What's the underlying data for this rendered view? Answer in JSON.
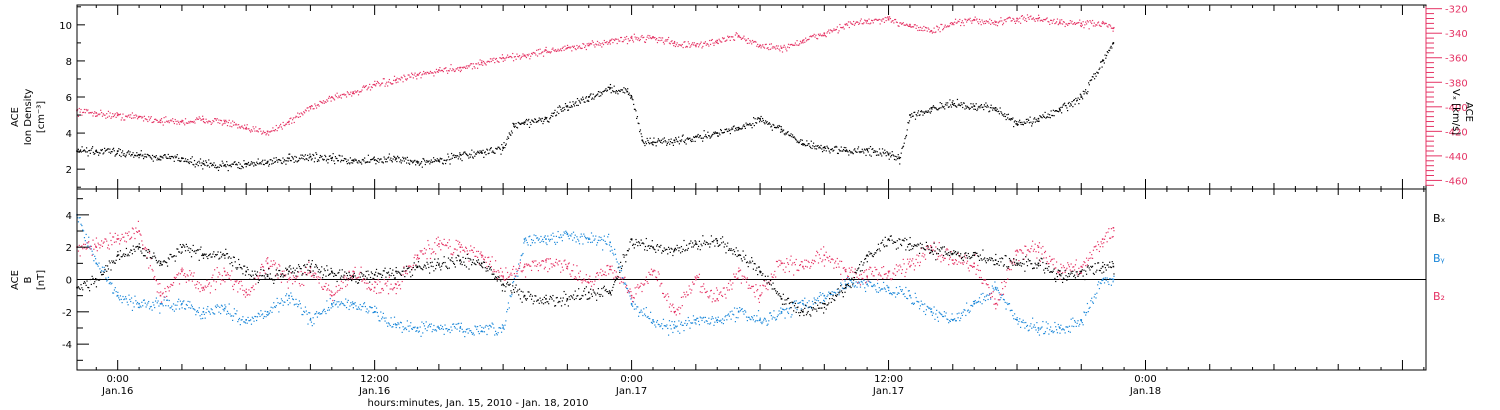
{
  "x_axis": {
    "label": "hours:minutes, Jan. 15, 2010 - Jan. 18, 2010",
    "range_hours": [
      -1.9,
      61.1
    ],
    "ticks": [
      {
        "hour": 0,
        "time": "0:00",
        "date": "Jan.16"
      },
      {
        "hour": 12,
        "time": "12:00",
        "date": "Jan.16"
      },
      {
        "hour": 24,
        "time": "0:00",
        "date": "Jan.17"
      },
      {
        "hour": 36,
        "time": "12:00",
        "date": "Jan.17"
      },
      {
        "hour": 48,
        "time": "0:00",
        "date": "Jan.18"
      }
    ],
    "minor_step_hours": 1,
    "major_step_hours": 3
  },
  "panels": {
    "top": {
      "left_ylabel_lines": [
        "ACE",
        "Ion Density",
        "[cm⁻³]"
      ],
      "right_ylabel_lines": [
        "ACE",
        "Vₓ [km/s]"
      ],
      "left_ticks": [
        "2",
        "4",
        "6",
        "8",
        "10"
      ],
      "right_ticks": [
        "-460",
        "-440",
        "-420",
        "-400",
        "-380",
        "-360",
        "-340",
        "-320"
      ]
    },
    "bottom": {
      "ylabel_lines": [
        "ACE",
        "B",
        "[nT]"
      ],
      "ticks": [
        "-4",
        "-2",
        "0",
        "2",
        "4"
      ],
      "legend": [
        {
          "label": "Bₓ",
          "color": "#000000"
        },
        {
          "label": "Bᵧ",
          "color": "#1a87d9"
        },
        {
          "label": "B₂",
          "color": "#e53465"
        }
      ]
    }
  },
  "colors": {
    "density": "#000000",
    "velocity": "#e53465",
    "bx": "#000000",
    "by": "#1a87d9",
    "bz": "#e53465",
    "axes": "#000000"
  },
  "chart_data": [
    {
      "type": "scatter",
      "name": "ACE Ion Density and Vx",
      "x_unit": "hours since 2010-01-16 00:00 UT",
      "xlim": [
        -1.9,
        61.1
      ],
      "ylim_left": [
        0.9,
        11.1
      ],
      "ylim_right": [
        -467,
        -317
      ],
      "series": [
        {
          "name": "Ion Density",
          "axis": "left",
          "color": "#000000",
          "points": [
            [
              -1.9,
              3.0
            ],
            [
              -1.0,
              3.0
            ],
            [
              0,
              3.0
            ],
            [
              1.0,
              2.8
            ],
            [
              2.0,
              2.7
            ],
            [
              3.0,
              2.6
            ],
            [
              4.0,
              2.3
            ],
            [
              5.0,
              2.2
            ],
            [
              6.0,
              2.3
            ],
            [
              7.0,
              2.4
            ],
            [
              8.0,
              2.6
            ],
            [
              9.0,
              2.7
            ],
            [
              10.0,
              2.6
            ],
            [
              11.0,
              2.5
            ],
            [
              12.0,
              2.5
            ],
            [
              13.0,
              2.6
            ],
            [
              14.0,
              2.4
            ],
            [
              15.0,
              2.5
            ],
            [
              16.0,
              2.8
            ],
            [
              17.0,
              2.9
            ],
            [
              18.0,
              3.2
            ],
            [
              18.5,
              4.5
            ],
            [
              19.0,
              4.6
            ],
            [
              20.0,
              4.8
            ],
            [
              21.0,
              5.5
            ],
            [
              22.0,
              6.0
            ],
            [
              23.0,
              6.5
            ],
            [
              23.8,
              6.3
            ],
            [
              24.0,
              6.0
            ],
            [
              24.5,
              3.6
            ],
            [
              25.0,
              3.5
            ],
            [
              26.0,
              3.6
            ],
            [
              27.0,
              3.8
            ],
            [
              28.0,
              4.0
            ],
            [
              29.0,
              4.3
            ],
            [
              30.0,
              4.8
            ],
            [
              31.0,
              4.2
            ],
            [
              32.0,
              3.4
            ],
            [
              33.0,
              3.2
            ],
            [
              34.0,
              3.0
            ],
            [
              35.0,
              3.1
            ],
            [
              36.0,
              2.8
            ],
            [
              36.5,
              2.6
            ],
            [
              37.0,
              5.0
            ],
            [
              38.0,
              5.4
            ],
            [
              39.0,
              5.6
            ],
            [
              40.0,
              5.5
            ],
            [
              41.0,
              5.4
            ],
            [
              42.0,
              4.5
            ],
            [
              43.0,
              4.8
            ],
            [
              44.0,
              5.3
            ],
            [
              45.0,
              6.0
            ],
            [
              46.0,
              8.0
            ],
            [
              46.5,
              9.0
            ]
          ]
        },
        {
          "name": "Vx",
          "axis": "right",
          "color": "#e53465",
          "points": [
            [
              -1.9,
              -403
            ],
            [
              -1.0,
              -405
            ],
            [
              0,
              -407
            ],
            [
              1.0,
              -408
            ],
            [
              2.0,
              -411
            ],
            [
              3.0,
              -412
            ],
            [
              4.0,
              -410
            ],
            [
              5.0,
              -412
            ],
            [
              6.0,
              -418
            ],
            [
              7.0,
              -420
            ],
            [
              8.0,
              -412
            ],
            [
              9.0,
              -400
            ],
            [
              10.0,
              -392
            ],
            [
              11.0,
              -388
            ],
            [
              12.0,
              -382
            ],
            [
              13.0,
              -378
            ],
            [
              14.0,
              -374
            ],
            [
              15.0,
              -370
            ],
            [
              16.0,
              -368
            ],
            [
              17.0,
              -364
            ],
            [
              18.0,
              -360
            ],
            [
              19.0,
              -358
            ],
            [
              20.0,
              -354
            ],
            [
              21.0,
              -352
            ],
            [
              22.0,
              -350
            ],
            [
              23.0,
              -346
            ],
            [
              24.0,
              -344
            ],
            [
              25.0,
              -343
            ],
            [
              26.0,
              -348
            ],
            [
              27.0,
              -350
            ],
            [
              28.0,
              -346
            ],
            [
              29.0,
              -342
            ],
            [
              30.0,
              -350
            ],
            [
              31.0,
              -352
            ],
            [
              32.0,
              -346
            ],
            [
              33.0,
              -340
            ],
            [
              34.0,
              -333
            ],
            [
              35.0,
              -330
            ],
            [
              36.0,
              -329
            ],
            [
              37.0,
              -333
            ],
            [
              38.0,
              -338
            ],
            [
              39.0,
              -332
            ],
            [
              40.0,
              -329
            ],
            [
              41.0,
              -331
            ],
            [
              42.0,
              -328
            ],
            [
              43.0,
              -328
            ],
            [
              44.0,
              -331
            ],
            [
              45.0,
              -332
            ],
            [
              46.0,
              -332
            ],
            [
              46.5,
              -336
            ]
          ]
        }
      ]
    },
    {
      "type": "scatter",
      "name": "ACE B components",
      "x_unit": "hours since 2010-01-16 00:00 UT",
      "xlim": [
        -1.9,
        61.1
      ],
      "ylim": [
        -5.6,
        5.6
      ],
      "reference_line_y": 0,
      "series": [
        {
          "name": "Bx",
          "color": "#000000",
          "points": [
            [
              -1.9,
              -0.5
            ],
            [
              -1.0,
              0.0
            ],
            [
              0,
              1.5
            ],
            [
              1.0,
              2.0
            ],
            [
              2.0,
              1.0
            ],
            [
              3.0,
              2.0
            ],
            [
              4.0,
              1.5
            ],
            [
              5.0,
              1.5
            ],
            [
              6.0,
              0.5
            ],
            [
              7.0,
              0.2
            ],
            [
              8.0,
              0.5
            ],
            [
              9.0,
              0.8
            ],
            [
              10.0,
              0.5
            ],
            [
              11.0,
              0.2
            ],
            [
              12.0,
              0.3
            ],
            [
              13.0,
              0.5
            ],
            [
              14.0,
              0.8
            ],
            [
              15.0,
              0.9
            ],
            [
              16.0,
              1.2
            ],
            [
              17.0,
              1.0
            ],
            [
              18.0,
              -0.3
            ],
            [
              19.0,
              -1.0
            ],
            [
              20.0,
              -1.2
            ],
            [
              21.0,
              -1.2
            ],
            [
              22.0,
              -0.8
            ],
            [
              23.0,
              -0.8
            ],
            [
              24.0,
              2.5
            ],
            [
              25.0,
              2.0
            ],
            [
              26.0,
              1.8
            ],
            [
              27.0,
              2.2
            ],
            [
              28.0,
              2.4
            ],
            [
              29.0,
              1.5
            ],
            [
              30.0,
              0.5
            ],
            [
              31.0,
              -1.2
            ],
            [
              32.0,
              -2.0
            ],
            [
              33.0,
              -1.5
            ],
            [
              34.0,
              -0.5
            ],
            [
              35.0,
              1.5
            ],
            [
              36.0,
              2.5
            ],
            [
              37.0,
              2.2
            ],
            [
              38.0,
              1.8
            ],
            [
              39.0,
              1.6
            ],
            [
              40.0,
              1.5
            ],
            [
              41.0,
              1.2
            ],
            [
              42.0,
              1.0
            ],
            [
              43.0,
              1.0
            ],
            [
              44.0,
              0.3
            ],
            [
              45.0,
              0.5
            ],
            [
              46.0,
              0.8
            ],
            [
              46.5,
              0.8
            ]
          ]
        },
        {
          "name": "By",
          "color": "#1a87d9",
          "points": [
            [
              -1.9,
              4.0
            ],
            [
              -1.0,
              1.0
            ],
            [
              0,
              -1.0
            ],
            [
              1.0,
              -1.5
            ],
            [
              2.0,
              -1.5
            ],
            [
              3.0,
              -1.5
            ],
            [
              4.0,
              -2.0
            ],
            [
              5.0,
              -1.8
            ],
            [
              6.0,
              -2.5
            ],
            [
              7.0,
              -2.0
            ],
            [
              8.0,
              -1.0
            ],
            [
              9.0,
              -2.5
            ],
            [
              10.0,
              -1.5
            ],
            [
              11.0,
              -1.5
            ],
            [
              12.0,
              -2.0
            ],
            [
              13.0,
              -2.8
            ],
            [
              14.0,
              -3.0
            ],
            [
              15.0,
              -3.0
            ],
            [
              16.0,
              -3.0
            ],
            [
              17.0,
              -3.2
            ],
            [
              18.0,
              -3.0
            ],
            [
              19.0,
              2.5
            ],
            [
              20.0,
              2.5
            ],
            [
              21.0,
              2.8
            ],
            [
              22.0,
              2.5
            ],
            [
              23.0,
              2.3
            ],
            [
              24.0,
              -1.5
            ],
            [
              25.0,
              -2.5
            ],
            [
              26.0,
              -3.0
            ],
            [
              27.0,
              -2.5
            ],
            [
              28.0,
              -2.5
            ],
            [
              29.0,
              -2.0
            ],
            [
              30.0,
              -2.5
            ],
            [
              31.0,
              -2.0
            ],
            [
              32.0,
              -1.5
            ],
            [
              33.0,
              -1.0
            ],
            [
              34.0,
              -0.3
            ],
            [
              35.0,
              -0.3
            ],
            [
              36.0,
              -0.5
            ],
            [
              37.0,
              -1.0
            ],
            [
              38.0,
              -2.0
            ],
            [
              39.0,
              -2.5
            ],
            [
              40.0,
              -1.5
            ],
            [
              41.0,
              -0.5
            ],
            [
              42.0,
              -2.5
            ],
            [
              43.0,
              -3.0
            ],
            [
              44.0,
              -3.0
            ],
            [
              45.0,
              -2.5
            ],
            [
              46.0,
              0.0
            ],
            [
              46.5,
              0.0
            ]
          ]
        },
        {
          "name": "Bz",
          "color": "#e53465",
          "points": [
            [
              -1.9,
              2.0
            ],
            [
              -1.0,
              2.0
            ],
            [
              0,
              2.5
            ],
            [
              1.0,
              3.0
            ],
            [
              2.0,
              -1.0
            ],
            [
              3.0,
              0.5
            ],
            [
              4.0,
              -0.5
            ],
            [
              5.0,
              0.5
            ],
            [
              6.0,
              -0.8
            ],
            [
              7.0,
              1.0
            ],
            [
              8.0,
              0.0
            ],
            [
              9.0,
              0.5
            ],
            [
              10.0,
              -1.0
            ],
            [
              11.0,
              0.5
            ],
            [
              12.0,
              -0.5
            ],
            [
              13.0,
              -0.3
            ],
            [
              14.0,
              1.5
            ],
            [
              15.0,
              2.2
            ],
            [
              16.0,
              2.0
            ],
            [
              17.0,
              1.5
            ],
            [
              18.0,
              0.2
            ],
            [
              19.0,
              0.8
            ],
            [
              20.0,
              1.2
            ],
            [
              21.0,
              0.8
            ],
            [
              22.0,
              -0.2
            ],
            [
              23.0,
              0.8
            ],
            [
              24.0,
              -1.0
            ],
            [
              25.0,
              0.5
            ],
            [
              26.0,
              -2.0
            ],
            [
              27.0,
              0.0
            ],
            [
              28.0,
              -1.2
            ],
            [
              29.0,
              0.5
            ],
            [
              30.0,
              -1.0
            ],
            [
              31.0,
              1.0
            ],
            [
              32.0,
              0.8
            ],
            [
              33.0,
              1.5
            ],
            [
              34.0,
              0.5
            ],
            [
              35.0,
              0.2
            ],
            [
              36.0,
              0.5
            ],
            [
              37.0,
              0.8
            ],
            [
              38.0,
              2.0
            ],
            [
              39.0,
              1.2
            ],
            [
              40.0,
              1.0
            ],
            [
              41.0,
              -1.5
            ],
            [
              42.0,
              1.8
            ],
            [
              43.0,
              2.0
            ],
            [
              44.0,
              0.5
            ],
            [
              45.0,
              0.8
            ],
            [
              46.0,
              2.5
            ],
            [
              46.5,
              3.2
            ]
          ]
        }
      ]
    }
  ]
}
